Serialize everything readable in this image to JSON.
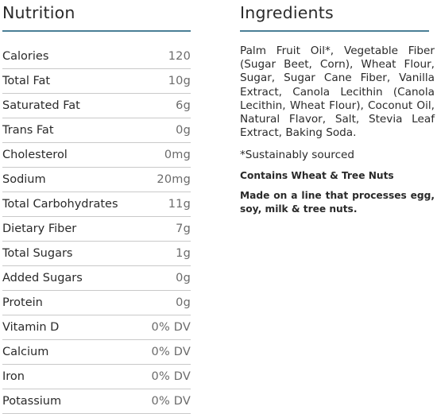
{
  "nutrition": {
    "title": "Nutrition",
    "rows": [
      {
        "name": "Calories",
        "value": "120"
      },
      {
        "name": "Total Fat",
        "value": "10g"
      },
      {
        "name": "Saturated Fat",
        "value": "6g"
      },
      {
        "name": "Trans Fat",
        "value": "0g"
      },
      {
        "name": "Cholesterol",
        "value": "0mg"
      },
      {
        "name": "Sodium",
        "value": "20mg"
      },
      {
        "name": "Total Carbohydrates",
        "value": "11g"
      },
      {
        "name": "Dietary Fiber",
        "value": "7g"
      },
      {
        "name": "Total Sugars",
        "value": "1g"
      },
      {
        "name": "Added Sugars",
        "value": "0g"
      },
      {
        "name": "Protein",
        "value": "0g"
      },
      {
        "name": "Vitamin D",
        "value": "0% DV"
      },
      {
        "name": "Calcium",
        "value": "0% DV"
      },
      {
        "name": "Iron",
        "value": "0% DV"
      },
      {
        "name": "Potassium",
        "value": "0% DV"
      }
    ]
  },
  "ingredients": {
    "title": "Ingredients",
    "text": "Palm Fruit Oil*, Vegetable Fiber (Sugar Beet, Corn), Wheat Flour, Sugar, Sugar Cane Fiber, Vanilla Extract, Canola Lecithin (Canola Lecithin, Wheat Flour), Coconut Oil, Natural Flavor, Salt, Stevia Leaf Extract, Baking Soda.",
    "footnote": "*Sustainably sourced",
    "allergen": "Contains Wheat & Tree Nuts",
    "facility": "Made on a line that processes egg, soy, milk & tree nuts."
  },
  "colors": {
    "accent_rule": "#4a7f96",
    "row_divider": "#c9c9c9",
    "text": "#2a2a2a",
    "value_text": "#6b6b6b"
  }
}
